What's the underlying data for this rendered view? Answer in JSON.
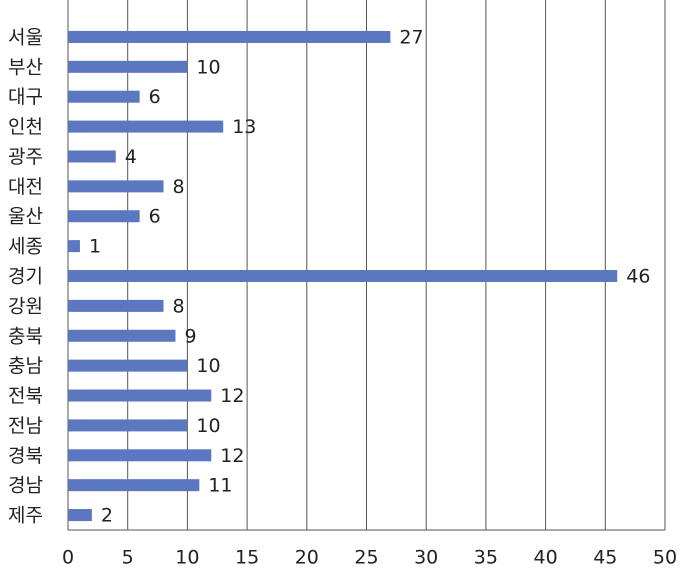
{
  "chart_data": {
    "type": "bar",
    "orientation": "horizontal",
    "categories": [
      "서울",
      "부산",
      "대구",
      "인천",
      "광주",
      "대전",
      "울산",
      "세종",
      "경기",
      "강원",
      "충북",
      "충남",
      "전북",
      "전남",
      "경북",
      "경남",
      "제주"
    ],
    "values": [
      27,
      10,
      6,
      13,
      4,
      8,
      6,
      1,
      46,
      8,
      9,
      10,
      12,
      10,
      12,
      11,
      2
    ],
    "color": "#5b77c0",
    "xlim": [
      0,
      50
    ],
    "xticks": [
      0,
      5,
      10,
      15,
      20,
      25,
      30,
      35,
      40,
      45,
      50
    ],
    "grid": true
  }
}
